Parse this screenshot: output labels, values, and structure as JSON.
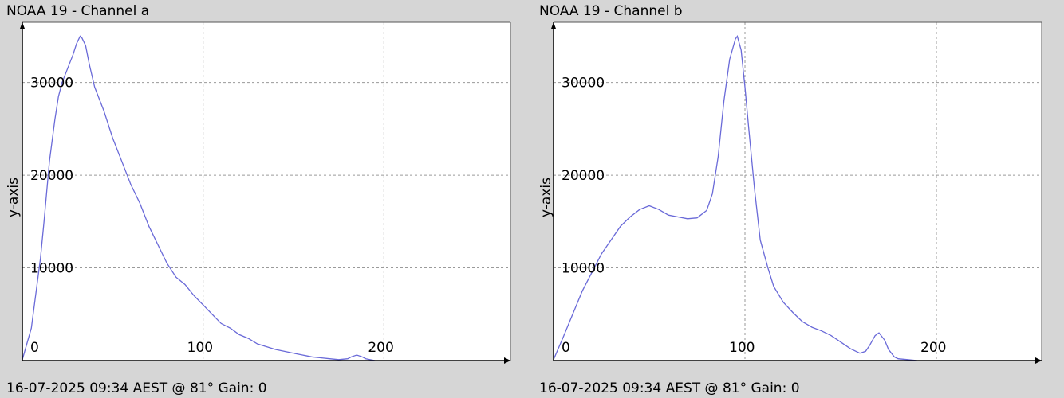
{
  "colors": {
    "background": "#d6d6d6",
    "plot_bg": "#ffffff",
    "line": "#6a6ad8",
    "grid": "#9a9a9a",
    "axis": "#000000"
  },
  "chart_data": [
    {
      "type": "line",
      "title": "NOAA 19 - Channel a",
      "ylabel": "y-axis",
      "footer": "16-07-2025 09:34 AEST @ 81° Gain: 0",
      "xlim": [
        0,
        270
      ],
      "ylim": [
        0,
        36500
      ],
      "xticks": [
        0,
        100,
        200
      ],
      "yticks": [
        10000,
        20000,
        30000
      ],
      "tick_labels": {
        "x": [
          "0",
          "100",
          "200"
        ],
        "y": [
          "10000",
          "20000",
          "30000"
        ]
      },
      "grid": true,
      "series": [
        {
          "x": [
            0,
            5,
            10,
            12,
            15,
            18,
            20,
            22,
            25,
            28,
            30,
            32,
            33,
            35,
            37,
            40,
            45,
            50,
            55,
            60,
            65,
            70,
            75,
            80,
            85,
            90,
            95,
            100,
            105,
            110,
            115,
            120,
            125,
            130,
            135,
            140,
            145,
            150,
            155,
            160,
            165,
            170,
            175,
            180,
            182,
            185,
            188,
            190,
            195
          ],
          "y": [
            100,
            3500,
            11000,
            15000,
            21500,
            26000,
            28500,
            30000,
            31500,
            33000,
            34200,
            35000,
            34800,
            34000,
            32000,
            29500,
            27000,
            24000,
            21500,
            19000,
            17000,
            14500,
            12500,
            10500,
            9000,
            8200,
            7000,
            6000,
            5000,
            4000,
            3500,
            2800,
            2400,
            1800,
            1500,
            1200,
            1000,
            800,
            600,
            400,
            300,
            200,
            100,
            200,
            400,
            600,
            400,
            200,
            0
          ]
        }
      ]
    },
    {
      "type": "line",
      "title": "NOAA 19 - Channel b",
      "ylabel": "y-axis",
      "footer": "16-07-2025 09:34 AEST @ 81° Gain: 0",
      "xlim": [
        0,
        255
      ],
      "ylim": [
        0,
        36500
      ],
      "xticks": [
        0,
        100,
        200
      ],
      "yticks": [
        10000,
        20000,
        30000
      ],
      "tick_labels": {
        "x": [
          "0",
          "100",
          "200"
        ],
        "y": [
          "10000",
          "20000",
          "30000"
        ]
      },
      "grid": true,
      "series": [
        {
          "x": [
            0,
            5,
            10,
            15,
            20,
            25,
            30,
            35,
            40,
            45,
            50,
            55,
            60,
            65,
            70,
            75,
            80,
            83,
            86,
            89,
            92,
            95,
            96,
            98,
            100,
            102,
            105,
            108,
            112,
            115,
            120,
            125,
            130,
            135,
            140,
            145,
            150,
            155,
            160,
            163,
            165,
            168,
            170,
            173,
            175,
            178,
            180,
            185,
            190
          ],
          "y": [
            100,
            2500,
            5000,
            7500,
            9500,
            11500,
            13000,
            14500,
            15500,
            16300,
            16700,
            16300,
            15700,
            15500,
            15300,
            15400,
            16200,
            18000,
            22000,
            28000,
            32500,
            34700,
            35000,
            33500,
            29500,
            25000,
            18500,
            13000,
            10000,
            8000,
            6300,
            5200,
            4200,
            3600,
            3200,
            2700,
            2000,
            1300,
            800,
            1000,
            1600,
            2700,
            3000,
            2200,
            1200,
            400,
            200,
            100,
            0
          ]
        }
      ]
    }
  ]
}
